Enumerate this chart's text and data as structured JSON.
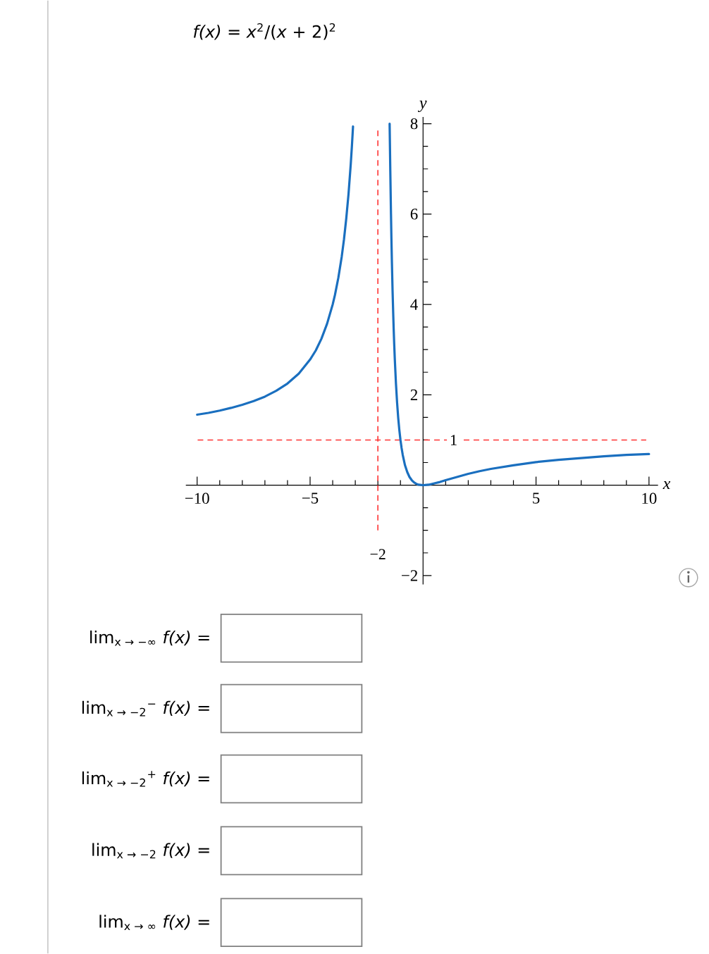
{
  "chart_data": {
    "type": "line",
    "title": "*f(x)* = *x*$^{2}$/(*x* + 2)$^{2}$",
    "xlabel": "x",
    "ylabel": "y",
    "series": [
      {
        "color": "#1a6fbf",
        "x": [
          -10,
          -9.5,
          -9,
          -8.5,
          -8,
          -7.5,
          -7,
          -6.5,
          -6,
          -5.5,
          -5,
          -4.75,
          -4.5,
          -4.25,
          -4,
          -3.9,
          -3.75,
          -3.6,
          -3.5,
          -3.4,
          -3.3,
          -3.2,
          -3.15,
          -3.1
        ],
        "values": [
          1.56,
          1.6,
          1.65,
          1.71,
          1.78,
          1.86,
          1.96,
          2.09,
          2.25,
          2.47,
          2.78,
          2.98,
          3.24,
          3.57,
          4.0,
          4.21,
          4.59,
          5.06,
          5.44,
          5.9,
          6.44,
          7.11,
          7.5,
          7.94
        ]
      },
      {
        "color": "#1a6fbf",
        "x": [
          -1.48,
          -1.45,
          -1.42,
          -1.4,
          -1.38,
          -1.35,
          -1.32,
          -1.3,
          -1.28,
          -1.25,
          -1.2,
          -1.15,
          -1.1,
          -1.05,
          -1.0,
          -0.95,
          -0.9,
          -0.8,
          -0.7,
          -0.6,
          -0.5,
          -0.4,
          -0.3,
          -0.2,
          0,
          0.25,
          0.5,
          0.75,
          1,
          1.5,
          2,
          2.5,
          3,
          4,
          5,
          6,
          7,
          8,
          9,
          10
        ],
        "values": [
          8.0,
          6.95,
          6.0,
          5.44,
          4.95,
          4.31,
          3.77,
          3.45,
          3.16,
          2.78,
          2.25,
          1.83,
          1.49,
          1.22,
          1.0,
          0.82,
          0.67,
          0.44,
          0.29,
          0.18,
          0.11,
          0.06,
          0.03,
          0.01,
          0,
          0.01,
          0.04,
          0.07,
          0.11,
          0.18,
          0.25,
          0.31,
          0.36,
          0.44,
          0.51,
          0.56,
          0.6,
          0.64,
          0.67,
          0.69
        ]
      }
    ],
    "xlim": [
      -10.5,
      10.4
    ],
    "ylim": [
      -2.2,
      8.15
    ],
    "xticks": [
      {
        "value": -10,
        "label": "−10"
      },
      {
        "value": -9,
        "label": null
      },
      {
        "value": -8,
        "label": null
      },
      {
        "value": -7,
        "label": null
      },
      {
        "value": -6,
        "label": null
      },
      {
        "value": -5,
        "label": "−5"
      },
      {
        "value": -4,
        "label": null
      },
      {
        "value": -3,
        "label": null
      },
      {
        "value": -2,
        "label": null
      },
      {
        "value": -1,
        "label": null
      },
      {
        "value": 1,
        "label": null
      },
      {
        "value": 2,
        "label": null
      },
      {
        "value": 3,
        "label": null
      },
      {
        "value": 4,
        "label": null
      },
      5,
      {
        "value": 6,
        "label": null
      },
      {
        "value": 7,
        "label": null
      },
      {
        "value": 8,
        "label": null
      },
      {
        "value": 9,
        "label": null
      },
      10
    ],
    "yticks": [
      {
        "value": -2,
        "label": "−2"
      },
      {
        "value": -1.5,
        "label": null
      },
      {
        "value": -1,
        "label": null
      },
      {
        "value": -0.5,
        "label": null
      },
      {
        "value": 0.5,
        "label": null
      },
      {
        "value": 1,
        "label": null
      },
      {
        "value": 1.5,
        "label": null
      },
      2,
      {
        "value": 2.5,
        "label": null
      },
      {
        "value": 3,
        "label": null
      },
      {
        "value": 3.5,
        "label": null
      },
      4,
      {
        "value": 4.5,
        "label": null
      },
      {
        "value": 5,
        "label": null
      },
      {
        "value": 5.5,
        "label": null
      },
      6,
      {
        "value": 6.5,
        "label": null
      },
      {
        "value": 7,
        "label": null
      },
      {
        "value": 7.5,
        "label": null
      },
      8
    ],
    "ref_lines": [
      {
        "axis": "x",
        "value": -2,
        "label": "−2",
        "color": "#ff3333",
        "line_style": "dashed"
      },
      {
        "axis": "y",
        "value": 1,
        "label": "1",
        "color": "#ff3333",
        "line_style": "dashed"
      }
    ],
    "annotations": [
      "lim$_{x → −∞}$ *f(x)* =",
      "lim$_{x → −2}$$^{−}$ *f(x)* =",
      "lim$_{x → −2}$$^{+}$ *f(x)* =",
      "lim$_{x → −2}$ *f(x)* =",
      "lim$_{x → ∞}$ *f(x)* ="
    ]
  }
}
